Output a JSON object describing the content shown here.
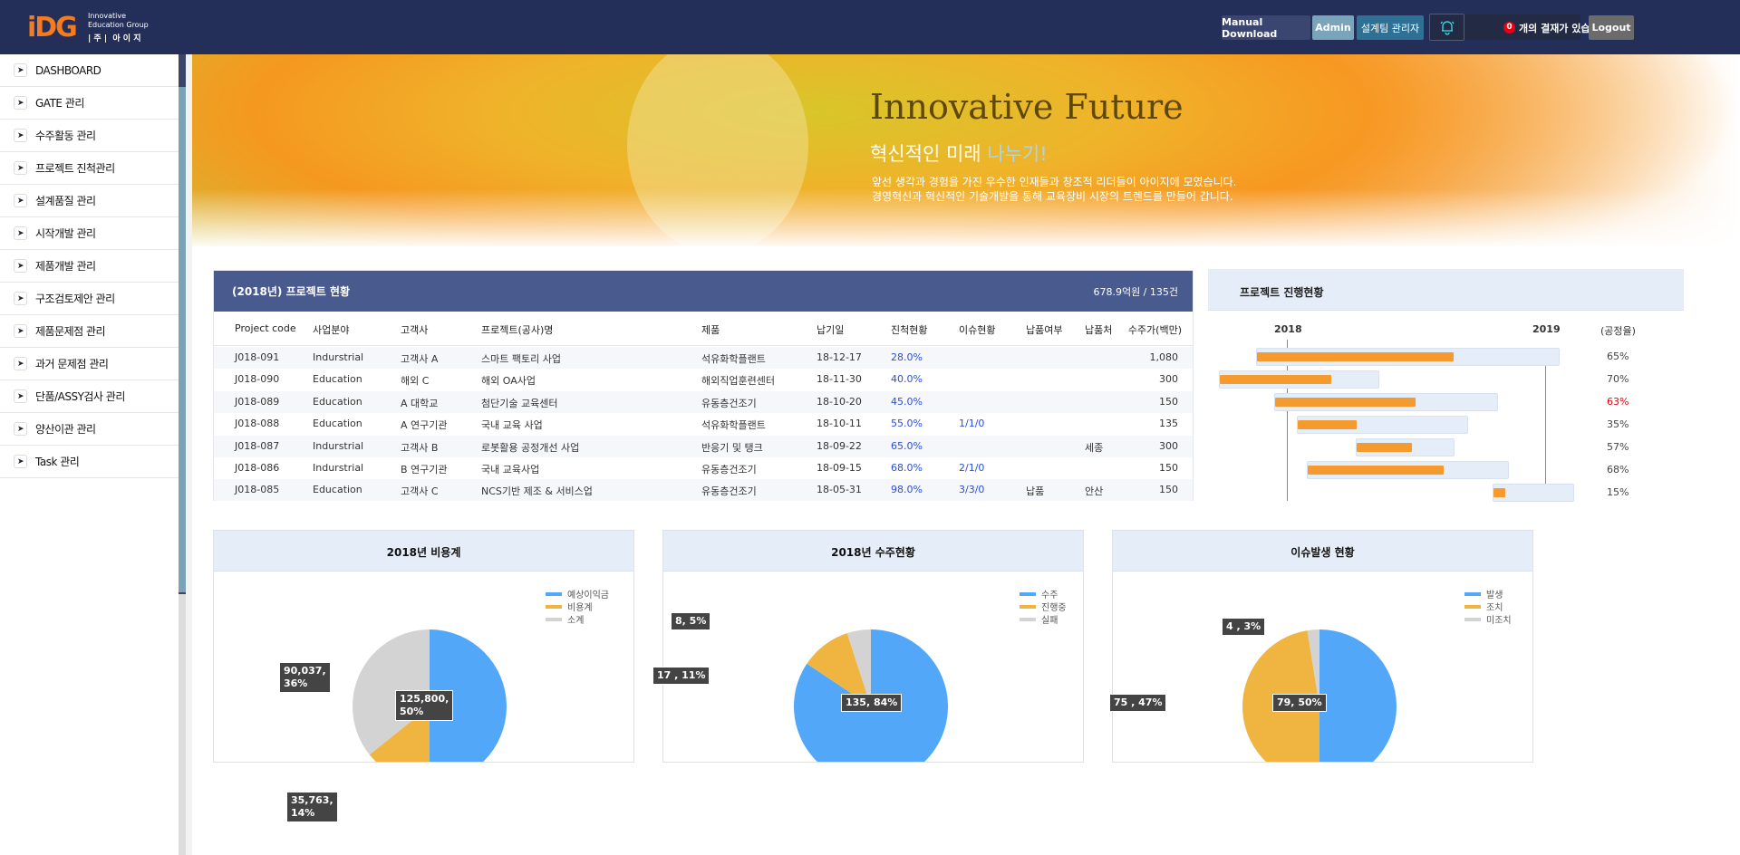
{
  "header": {
    "logo_text": "iDG",
    "logo_line1": "Innovative",
    "logo_line2": "Education Group",
    "logo_line3": "| 주 |  아 이 지",
    "manual_download": "Manual Download",
    "admin": "Admin",
    "team_admin": "설계팀 관리자",
    "approval_count": "0",
    "approval_text": "개의 결재가 있습니다.",
    "logout": "Logout",
    "bell_icon": "bell-icon"
  },
  "sidebar": {
    "items": [
      "DASHBOARD",
      "GATE 관리",
      "수주활동 관리",
      "프로젝트 진척관리",
      "설계품질 관리",
      "시작개발 관리",
      "제품개발 관리",
      "구조검토제안 관리",
      "제품문제점 관리",
      "과거 문제점 관리",
      "단품/ASSY검사 관리",
      "양산이관 관리",
      "Task 관리"
    ]
  },
  "banner": {
    "title": "Innovative Future",
    "subtitle": "혁신적인 미래 ",
    "subtitle_highlight": "나누기!",
    "line1": "앞선 생각과 경험을 가진 우수한 인재들과 창조적 리더들이 아이지에 모였습니다.",
    "line2": "경영혁신과 혁신적인 기술개발을 통해 교육장비 시장의 트렌드를 만들어 갑니다."
  },
  "projects": {
    "title": "(2018년) 프로젝트 현황",
    "summary": "678.9억원 / 135건",
    "columns": [
      "Project code",
      "사업분야",
      "고객사",
      "프로젝트(공사)명",
      "제품",
      "납기일",
      "진척현황",
      "이슈현황",
      "납품여부",
      "납품처",
      "수주가(백만)"
    ],
    "rows": [
      [
        "J018-091",
        "Indurstrial",
        "고객사 A",
        "스마트 팩토리 사업",
        "석유화학플랜트",
        "18-12-17",
        "28.0%",
        "",
        "",
        "",
        "1,080"
      ],
      [
        "J018-090",
        "Education",
        "해외 C",
        "해외 OA사업",
        "해외직업훈련센터",
        "18-11-30",
        "40.0%",
        "",
        "",
        "",
        "300"
      ],
      [
        "J018-089",
        "Education",
        "A 대학교",
        "첨단기술 교육센터",
        "유동층건조기",
        "18-10-20",
        "45.0%",
        "",
        "",
        "",
        "150"
      ],
      [
        "J018-088",
        "Education",
        "A 연구기관",
        "국내 교육 사업",
        "석유화학플랜트",
        "18-10-11",
        "55.0%",
        "1/1/0",
        "",
        "",
        "135"
      ],
      [
        "J018-087",
        "Indurstrial",
        "고객사 B",
        "로봇활용 공정개선 사업",
        "반응기 및 탱크",
        "18-09-22",
        "65.0%",
        "",
        "",
        "세종",
        "300"
      ],
      [
        "J018-086",
        "Indurstrial",
        "B 연구기관",
        "국내 교육사업",
        "유동층건조기",
        "18-09-15",
        "68.0%",
        "2/1/0",
        "",
        "",
        "150"
      ],
      [
        "J018-085",
        "Education",
        "고객사 C",
        "NCS기반 제조 & 서비스업",
        "유동층건조기",
        "18-05-31",
        "98.0%",
        "3/3/0",
        "납품",
        "안산",
        "150"
      ]
    ]
  },
  "gantt": {
    "title": "프로젝트 진행현황",
    "years": [
      "2018",
      "2019"
    ],
    "rate_header": "(공정율)",
    "alert_color": "#e60012",
    "bar_color": "#f59a2e",
    "track_color": "#e5eef8",
    "rows": [
      {
        "start": "2017-11-18",
        "end": "2019-01-22",
        "rate": 65,
        "label": "65%",
        "alert": false
      },
      {
        "start": "2017-09-27",
        "end": "2018-05-12",
        "rate": 70,
        "label": "70%",
        "alert": false
      },
      {
        "start": "2017-12-14",
        "end": "2018-10-27",
        "rate": 63,
        "label": "63%",
        "alert": true
      },
      {
        "start": "2018-01-15",
        "end": "2018-09-14",
        "rate": 35,
        "label": "35%",
        "alert": false
      },
      {
        "start": "2018-04-08",
        "end": "2018-08-26",
        "rate": 57,
        "label": "57%",
        "alert": false
      },
      {
        "start": "2018-01-29",
        "end": "2018-11-11",
        "rate": 68,
        "label": "68%",
        "alert": false
      },
      {
        "start": "2018-10-19",
        "end": "2019-02-11",
        "rate": 15,
        "label": "15%",
        "alert": false
      }
    ]
  },
  "chart_data": [
    {
      "type": "pie",
      "title": "2018년 비용계",
      "legend": "top-right",
      "colors": [
        "#52a7f8",
        "#f0b441",
        "#d3d3d3"
      ],
      "slices": [
        {
          "name": "예상이익금",
          "value": 125800,
          "label": "125,800,\n50%"
        },
        {
          "name": "비용계",
          "value": 35763,
          "label": "35,763,\n14%"
        },
        {
          "name": "소계",
          "value": 90037,
          "label": "90,037,\n36%"
        }
      ]
    },
    {
      "type": "pie",
      "title": "2018년 수주현황",
      "legend": "top-right",
      "colors": [
        "#52a7f8",
        "#f0b441",
        "#d3d3d3"
      ],
      "slices": [
        {
          "name": "수주",
          "value": 135,
          "label": "135, 84%"
        },
        {
          "name": "진행중",
          "value": 17,
          "label": "17 , 11%"
        },
        {
          "name": "실패",
          "value": 8,
          "label": "8, 5%"
        }
      ]
    },
    {
      "type": "pie",
      "title": "이슈발생 현황",
      "legend": "top-right",
      "colors": [
        "#52a7f8",
        "#f0b441",
        "#d3d3d3"
      ],
      "slices": [
        {
          "name": "발생",
          "value": 79,
          "label": "79, 50%"
        },
        {
          "name": "조치",
          "value": 75,
          "label": "75 , 47%"
        },
        {
          "name": "미조치",
          "value": 4,
          "label": "4 , 3%"
        }
      ]
    }
  ]
}
